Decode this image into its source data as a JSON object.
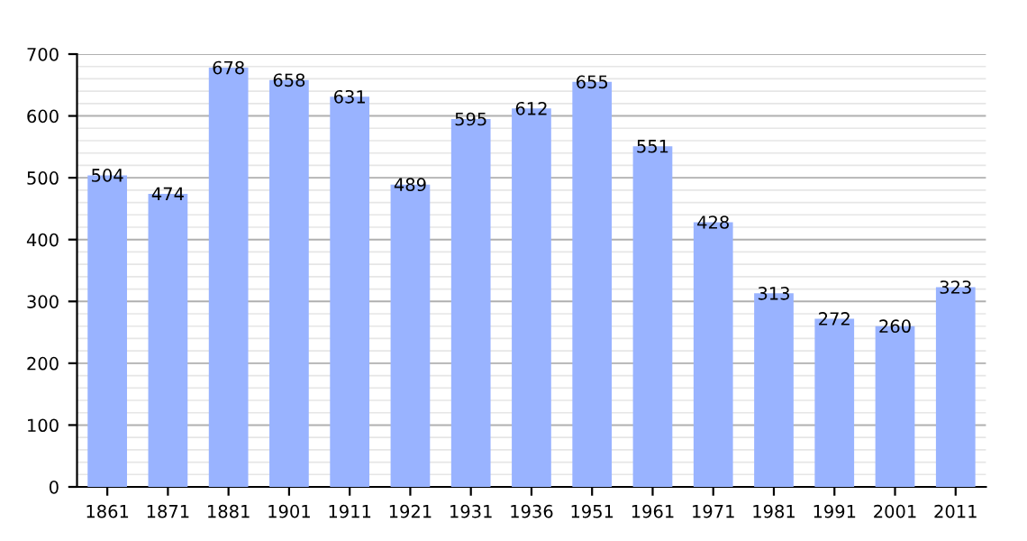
{
  "chart_data": {
    "type": "bar",
    "categories": [
      "1861",
      "1871",
      "1881",
      "1901",
      "1911",
      "1921",
      "1931",
      "1936",
      "1951",
      "1961",
      "1971",
      "1981",
      "1991",
      "2001",
      "2011"
    ],
    "values": [
      504,
      474,
      678,
      658,
      631,
      489,
      595,
      612,
      655,
      551,
      428,
      313,
      272,
      260,
      323
    ],
    "color": "#99b3ff",
    "ylim": [
      0,
      700
    ],
    "yticks": [
      0,
      100,
      200,
      300,
      400,
      500,
      600,
      700
    ],
    "grid": "y",
    "data_labels": true
  }
}
